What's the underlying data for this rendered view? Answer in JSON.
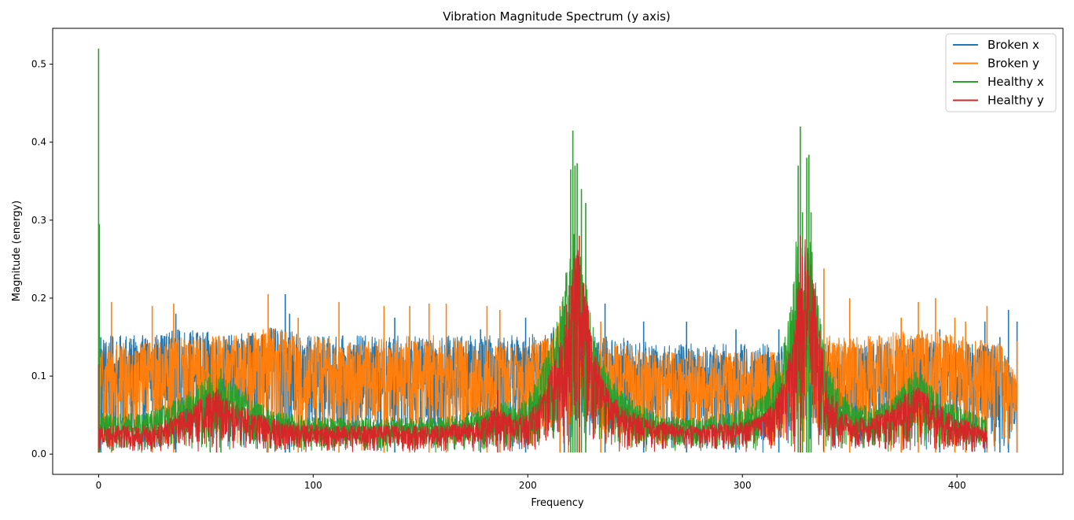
{
  "chart_data": {
    "type": "line",
    "title": "Vibration Magnitude Spectrum (y axis)",
    "xlabel": "Frequency",
    "ylabel": "Magnitude (energy)",
    "xlim": [
      -21.4,
      449.4
    ],
    "ylim": [
      -0.026,
      0.546
    ],
    "x_ticks": [
      0,
      100,
      200,
      300,
      400
    ],
    "y_ticks": [
      0.0,
      0.1,
      0.2,
      0.3,
      0.4,
      0.5
    ],
    "x_tick_labels": [
      "0",
      "100",
      "200",
      "300",
      "400"
    ],
    "y_tick_labels": [
      "0.0",
      "0.1",
      "0.2",
      "0.3",
      "0.4",
      "0.5"
    ],
    "grid": false,
    "legend_position": "top-right",
    "series": [
      {
        "name": "Broken x",
        "color": "#1f77b4",
        "x_range": [
          0,
          428
        ],
        "envelope": [
          [
            0,
            0.15
          ],
          [
            20,
            0.15
          ],
          [
            40,
            0.16
          ],
          [
            60,
            0.15
          ],
          [
            80,
            0.16
          ],
          [
            100,
            0.15
          ],
          [
            120,
            0.15
          ],
          [
            140,
            0.15
          ],
          [
            160,
            0.15
          ],
          [
            180,
            0.15
          ],
          [
            200,
            0.15
          ],
          [
            210,
            0.16
          ],
          [
            220,
            0.18
          ],
          [
            225,
            0.15
          ],
          [
            240,
            0.15
          ],
          [
            260,
            0.14
          ],
          [
            280,
            0.14
          ],
          [
            300,
            0.14
          ],
          [
            320,
            0.14
          ],
          [
            340,
            0.14
          ],
          [
            360,
            0.14
          ],
          [
            380,
            0.15
          ],
          [
            400,
            0.14
          ],
          [
            420,
            0.14
          ],
          [
            428,
            0.09
          ]
        ],
        "peaks": [
          [
            1,
            0.15
          ],
          [
            36,
            0.18
          ],
          [
            87,
            0.205
          ],
          [
            89,
            0.18
          ],
          [
            138,
            0.175
          ],
          [
            178,
            0.16
          ],
          [
            199,
            0.175
          ],
          [
            217,
            0.19
          ],
          [
            236,
            0.193
          ],
          [
            254,
            0.17
          ],
          [
            274,
            0.17
          ],
          [
            297,
            0.16
          ],
          [
            317,
            0.16
          ],
          [
            392,
            0.16
          ],
          [
            413,
            0.17
          ],
          [
            420,
            0.15
          ],
          [
            424,
            0.185
          ],
          [
            428,
            0.17
          ]
        ]
      },
      {
        "name": "Broken y",
        "color": "#ff7f0e",
        "x_range": [
          0,
          428
        ],
        "envelope": [
          [
            0,
            0.14
          ],
          [
            20,
            0.14
          ],
          [
            40,
            0.15
          ],
          [
            60,
            0.15
          ],
          [
            80,
            0.16
          ],
          [
            100,
            0.15
          ],
          [
            120,
            0.14
          ],
          [
            140,
            0.15
          ],
          [
            160,
            0.15
          ],
          [
            180,
            0.14
          ],
          [
            200,
            0.14
          ],
          [
            210,
            0.15
          ],
          [
            218,
            0.18
          ],
          [
            225,
            0.16
          ],
          [
            240,
            0.14
          ],
          [
            260,
            0.13
          ],
          [
            280,
            0.13
          ],
          [
            300,
            0.13
          ],
          [
            320,
            0.13
          ],
          [
            330,
            0.14
          ],
          [
            340,
            0.15
          ],
          [
            360,
            0.15
          ],
          [
            380,
            0.16
          ],
          [
            400,
            0.15
          ],
          [
            420,
            0.14
          ],
          [
            428,
            0.1
          ]
        ],
        "peaks": [
          [
            6,
            0.195
          ],
          [
            25,
            0.19
          ],
          [
            35,
            0.193
          ],
          [
            79,
            0.205
          ],
          [
            93,
            0.175
          ],
          [
            112,
            0.195
          ],
          [
            133,
            0.19
          ],
          [
            145,
            0.19
          ],
          [
            154,
            0.193
          ],
          [
            162,
            0.193
          ],
          [
            181,
            0.19
          ],
          [
            187,
            0.185
          ],
          [
            215,
            0.19
          ],
          [
            219,
            0.165
          ],
          [
            234,
            0.17
          ],
          [
            338,
            0.238
          ],
          [
            350,
            0.2
          ],
          [
            374,
            0.175
          ],
          [
            382,
            0.195
          ],
          [
            390,
            0.2
          ],
          [
            399,
            0.175
          ],
          [
            404,
            0.17
          ],
          [
            414,
            0.19
          ],
          [
            428,
            0.145
          ]
        ]
      },
      {
        "name": "Healthy x",
        "color": "#2ca02c",
        "x_range": [
          0,
          414
        ],
        "envelope": [
          [
            0,
            0.05
          ],
          [
            10,
            0.05
          ],
          [
            20,
            0.05
          ],
          [
            30,
            0.06
          ],
          [
            40,
            0.075
          ],
          [
            50,
            0.095
          ],
          [
            55,
            0.1
          ],
          [
            60,
            0.095
          ],
          [
            70,
            0.075
          ],
          [
            80,
            0.055
          ],
          [
            90,
            0.05
          ],
          [
            100,
            0.045
          ],
          [
            120,
            0.045
          ],
          [
            140,
            0.045
          ],
          [
            160,
            0.045
          ],
          [
            170,
            0.05
          ],
          [
            180,
            0.055
          ],
          [
            190,
            0.07
          ],
          [
            195,
            0.06
          ],
          [
            200,
            0.07
          ],
          [
            205,
            0.1
          ],
          [
            210,
            0.14
          ],
          [
            215,
            0.18
          ],
          [
            218,
            0.24
          ],
          [
            220,
            0.28
          ],
          [
            222,
            0.3
          ],
          [
            224,
            0.28
          ],
          [
            226,
            0.24
          ],
          [
            230,
            0.17
          ],
          [
            235,
            0.12
          ],
          [
            240,
            0.09
          ],
          [
            250,
            0.065
          ],
          [
            260,
            0.05
          ],
          [
            270,
            0.045
          ],
          [
            280,
            0.045
          ],
          [
            290,
            0.05
          ],
          [
            300,
            0.055
          ],
          [
            310,
            0.075
          ],
          [
            315,
            0.1
          ],
          [
            320,
            0.15
          ],
          [
            323,
            0.2
          ],
          [
            325,
            0.28
          ],
          [
            327,
            0.3
          ],
          [
            329,
            0.3
          ],
          [
            331,
            0.28
          ],
          [
            333,
            0.25
          ],
          [
            335,
            0.2
          ],
          [
            338,
            0.14
          ],
          [
            340,
            0.11
          ],
          [
            345,
            0.08
          ],
          [
            350,
            0.065
          ],
          [
            360,
            0.06
          ],
          [
            370,
            0.07
          ],
          [
            375,
            0.09
          ],
          [
            380,
            0.105
          ],
          [
            385,
            0.1
          ],
          [
            390,
            0.08
          ],
          [
            400,
            0.06
          ],
          [
            410,
            0.05
          ],
          [
            414,
            0.045
          ]
        ],
        "peaks": [
          [
            0,
            0.52
          ],
          [
            0.3,
            0.295
          ],
          [
            52,
            0.11
          ],
          [
            57,
            0.11
          ],
          [
            220,
            0.365
          ],
          [
            221,
            0.415
          ],
          [
            222,
            0.37
          ],
          [
            223,
            0.373
          ],
          [
            225,
            0.34
          ],
          [
            227,
            0.322
          ],
          [
            326,
            0.37
          ],
          [
            327,
            0.42
          ],
          [
            328,
            0.31
          ],
          [
            330,
            0.38
          ],
          [
            331,
            0.384
          ],
          [
            332,
            0.31
          ]
        ]
      },
      {
        "name": "Healthy y",
        "color": "#d62728",
        "x_range": [
          0,
          414
        ],
        "envelope": [
          [
            0,
            0.035
          ],
          [
            10,
            0.035
          ],
          [
            20,
            0.035
          ],
          [
            30,
            0.04
          ],
          [
            40,
            0.055
          ],
          [
            50,
            0.075
          ],
          [
            55,
            0.085
          ],
          [
            60,
            0.07
          ],
          [
            70,
            0.055
          ],
          [
            80,
            0.045
          ],
          [
            90,
            0.04
          ],
          [
            100,
            0.035
          ],
          [
            120,
            0.035
          ],
          [
            140,
            0.035
          ],
          [
            160,
            0.035
          ],
          [
            175,
            0.04
          ],
          [
            180,
            0.045
          ],
          [
            185,
            0.06
          ],
          [
            190,
            0.05
          ],
          [
            200,
            0.05
          ],
          [
            205,
            0.07
          ],
          [
            210,
            0.1
          ],
          [
            215,
            0.14
          ],
          [
            218,
            0.19
          ],
          [
            220,
            0.23
          ],
          [
            222,
            0.27
          ],
          [
            224,
            0.27
          ],
          [
            226,
            0.24
          ],
          [
            228,
            0.19
          ],
          [
            230,
            0.14
          ],
          [
            235,
            0.1
          ],
          [
            240,
            0.07
          ],
          [
            250,
            0.05
          ],
          [
            260,
            0.04
          ],
          [
            280,
            0.035
          ],
          [
            300,
            0.04
          ],
          [
            310,
            0.05
          ],
          [
            315,
            0.07
          ],
          [
            320,
            0.1
          ],
          [
            323,
            0.15
          ],
          [
            325,
            0.22
          ],
          [
            327,
            0.27
          ],
          [
            329,
            0.28
          ],
          [
            331,
            0.27
          ],
          [
            333,
            0.23
          ],
          [
            335,
            0.18
          ],
          [
            338,
            0.12
          ],
          [
            340,
            0.09
          ],
          [
            345,
            0.06
          ],
          [
            350,
            0.045
          ],
          [
            360,
            0.045
          ],
          [
            370,
            0.06
          ],
          [
            375,
            0.075
          ],
          [
            380,
            0.085
          ],
          [
            385,
            0.08
          ],
          [
            390,
            0.065
          ],
          [
            400,
            0.045
          ],
          [
            410,
            0.035
          ],
          [
            414,
            0.035
          ]
        ],
        "peaks": [
          [
            0,
            0.115
          ],
          [
            55,
            0.085
          ],
          [
            186,
            0.082
          ],
          [
            224,
            0.28
          ],
          [
            327,
            0.28
          ]
        ]
      }
    ]
  }
}
